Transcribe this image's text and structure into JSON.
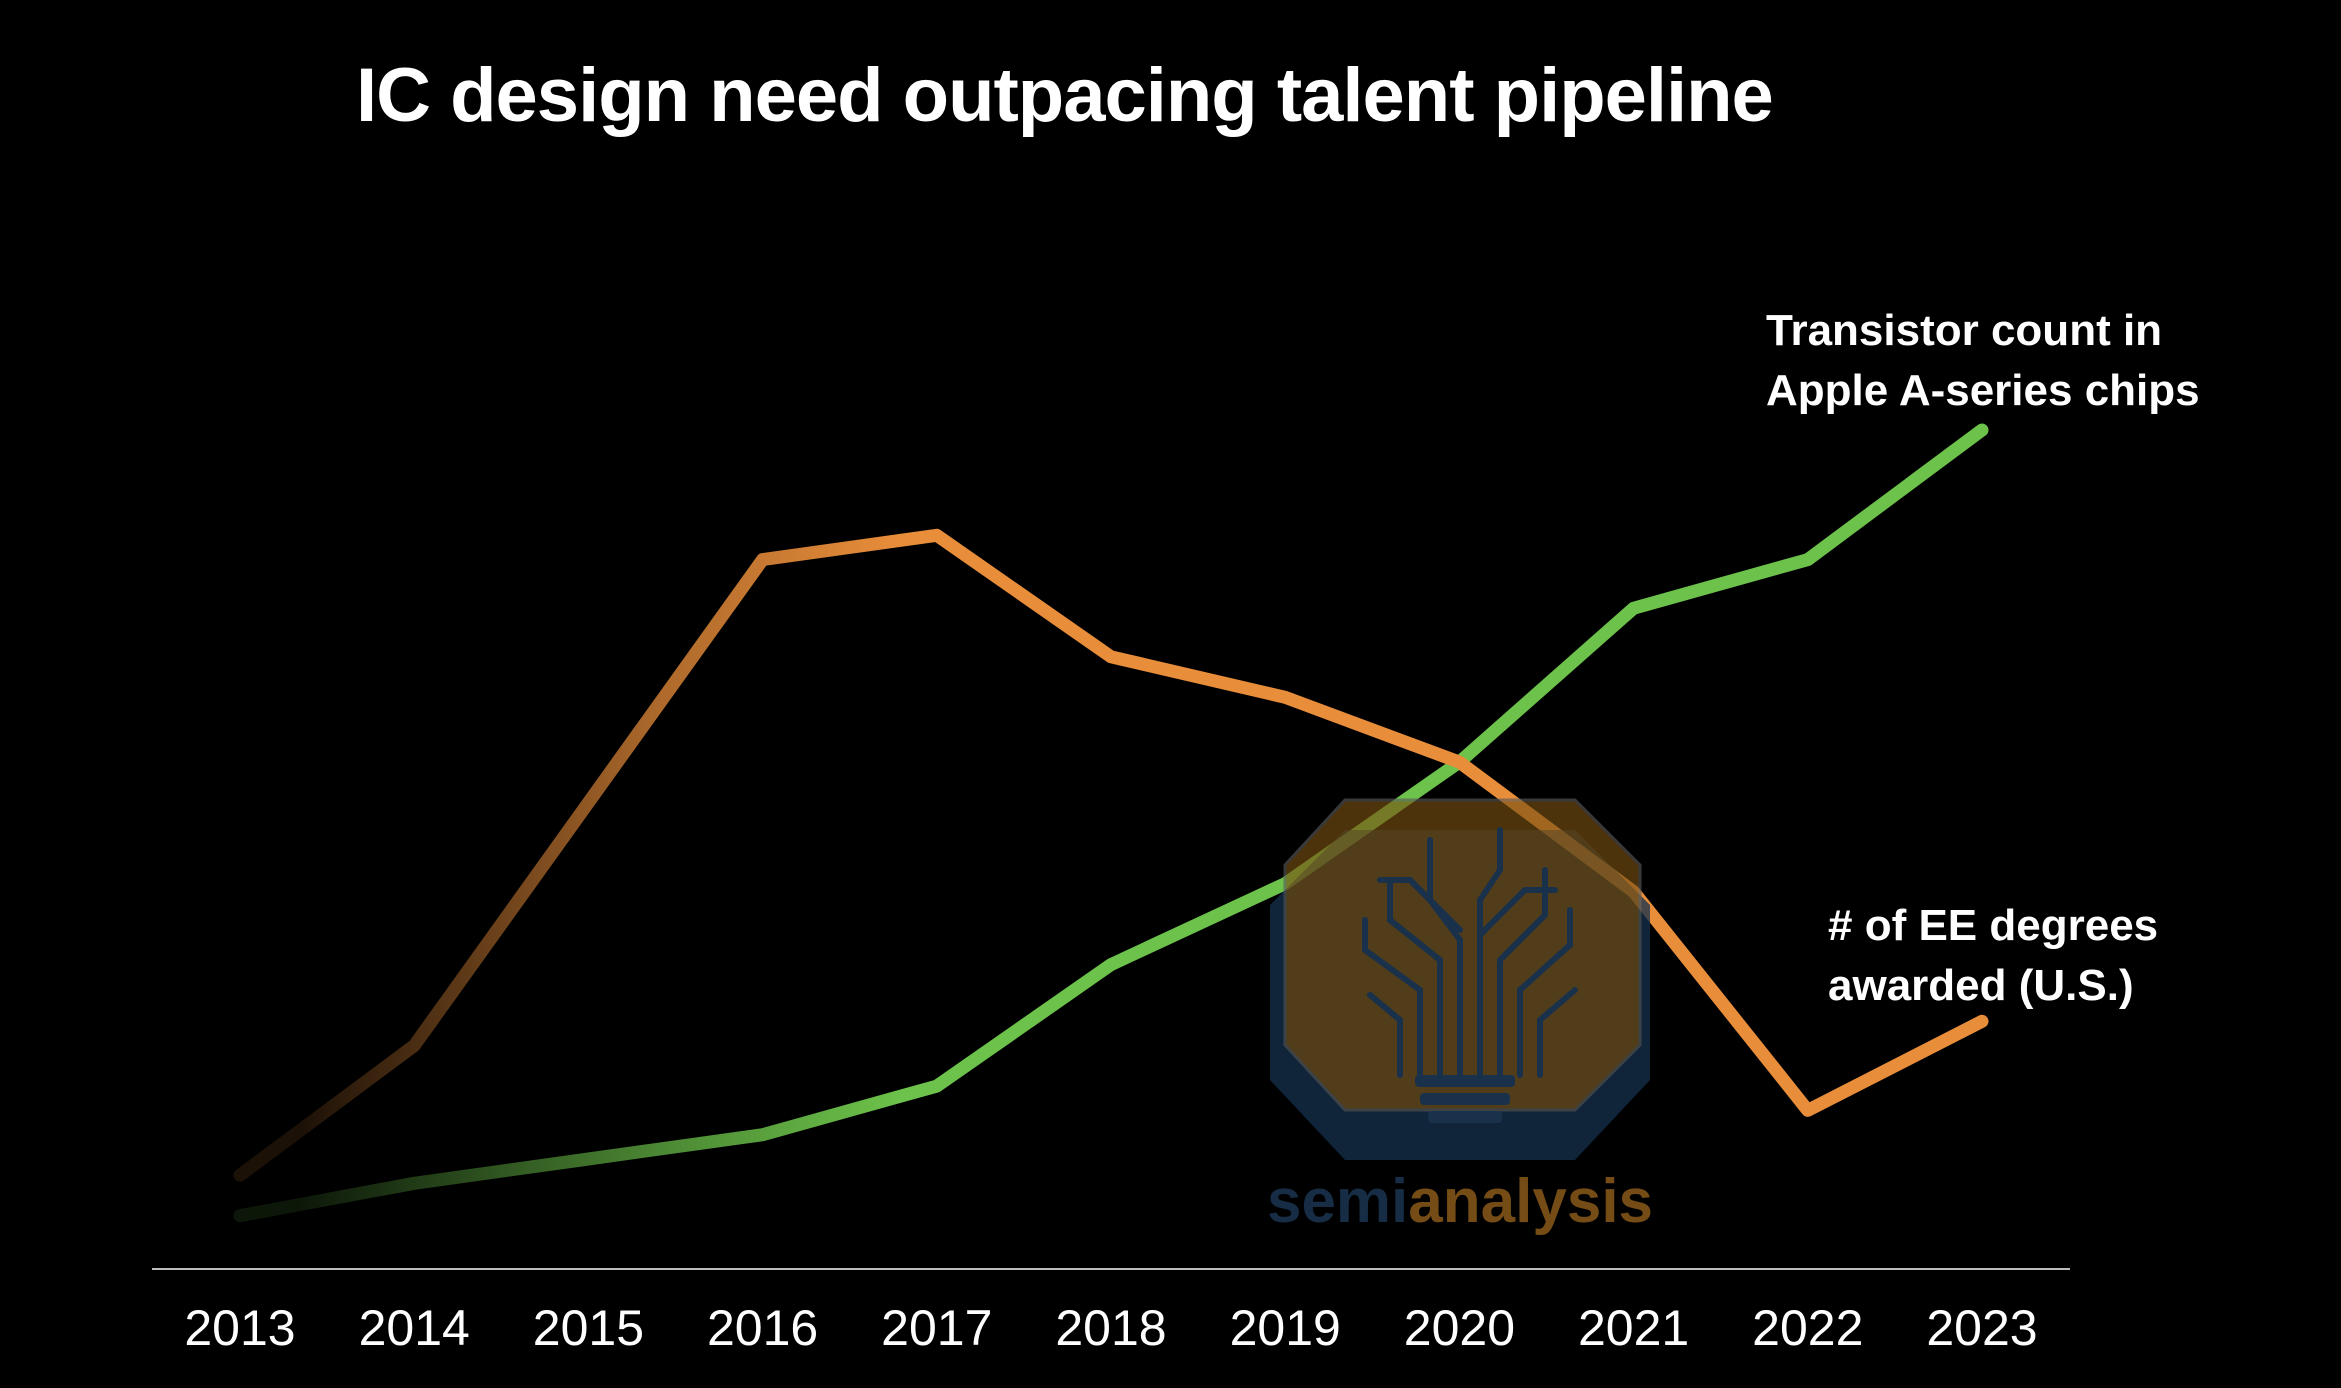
{
  "chart_data": {
    "type": "line",
    "title": "IC design need outpacing talent pipeline",
    "xlabel": "",
    "ylabel": "",
    "x": [
      2013,
      2014,
      2015,
      2016,
      2017,
      2018,
      2019,
      2020,
      2021,
      2022,
      2023
    ],
    "tick_labels": [
      "2013",
      "2014",
      "2015",
      "2016",
      "2017",
      "2018",
      "2019",
      "2020",
      "2021",
      "2022",
      "2023"
    ],
    "ylim": [
      0,
      100
    ],
    "grid": false,
    "series": [
      {
        "key": "transistors",
        "name_lines": [
          "Transistor count in",
          "Apple A-series chips"
        ],
        "color": "#6cc24a",
        "values": [
          3,
          7,
          10,
          13,
          19,
          34,
          44,
          59,
          78,
          84,
          100
        ]
      },
      {
        "key": "ee_degrees",
        "name_lines": [
          "# of EE degrees",
          "awarded (U.S.)"
        ],
        "color": "#e88d3a",
        "values": [
          8,
          24,
          54,
          84,
          87,
          72,
          67,
          59,
          43,
          16,
          27
        ]
      }
    ]
  },
  "watermark": {
    "text_part1": "semi",
    "text_part2": "analysis",
    "color_dark": "#1a3552",
    "color_gold": "#8a5a1a"
  }
}
